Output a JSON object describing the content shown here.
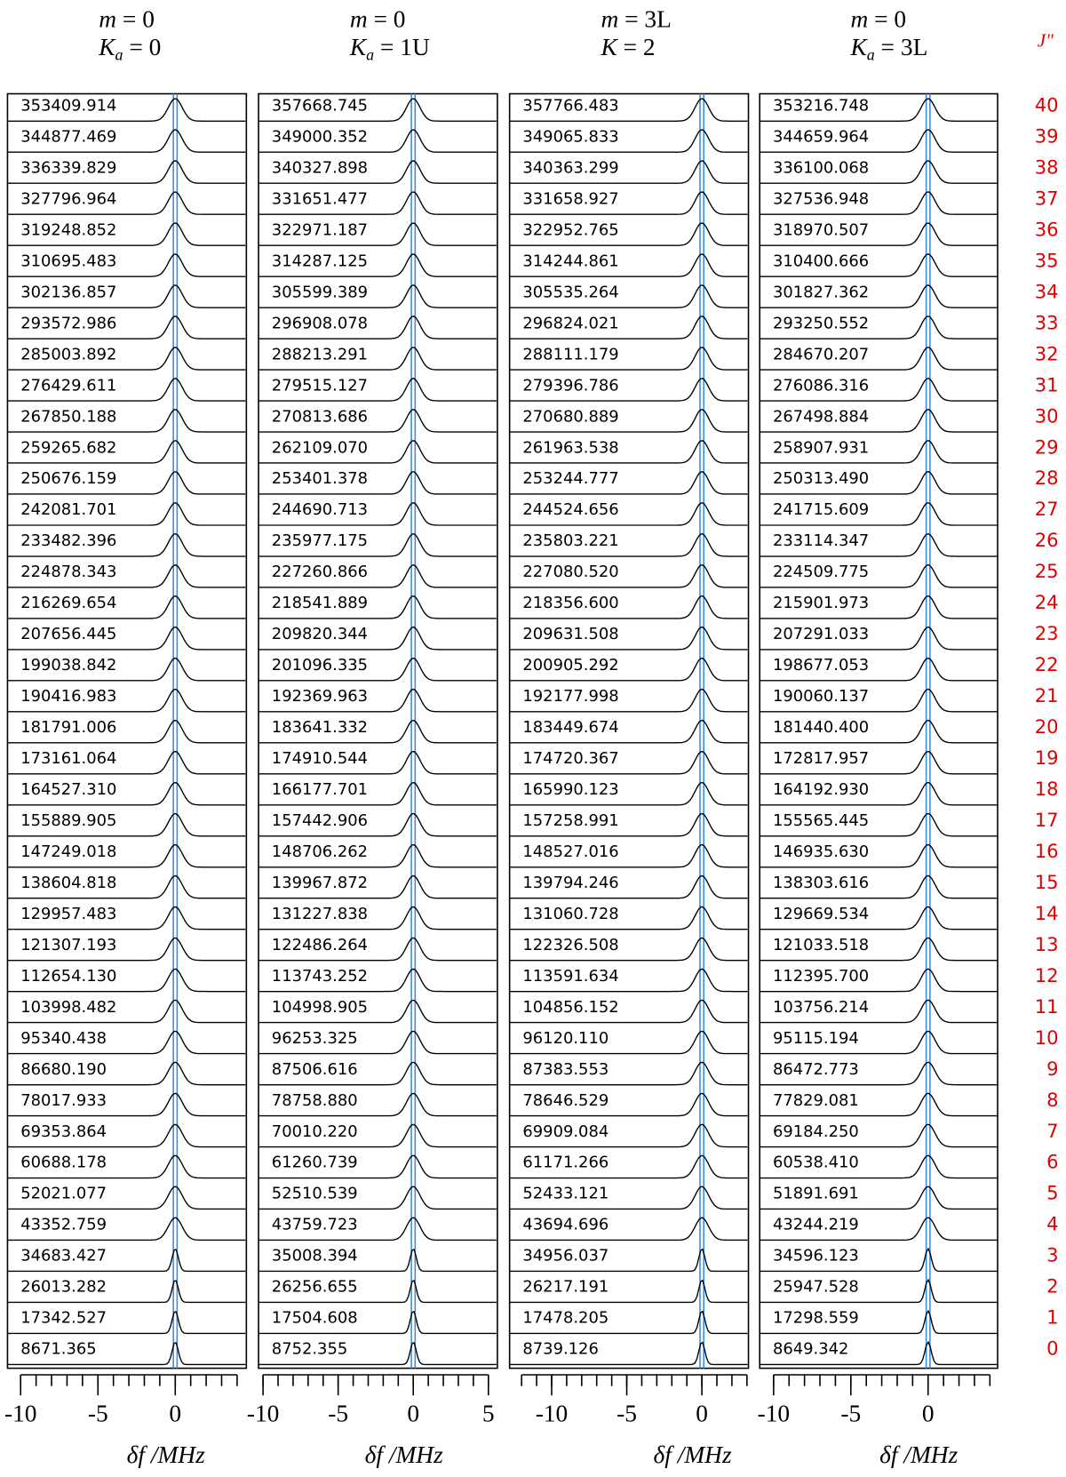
{
  "chart_data": [
    {
      "type": "spectra",
      "title": [
        {
          "italic": "m",
          "text": " = 0"
        },
        {
          "italic": "K",
          "sub": "a",
          "text": " = 0"
        }
      ],
      "rows": [
        "353409.914",
        "344877.469",
        "336339.829",
        "327796.964",
        "319248.852",
        "310695.483",
        "302136.857",
        "293572.986",
        "285003.892",
        "276429.611",
        "267850.188",
        "259265.682",
        "250676.159",
        "242081.701",
        "233482.396",
        "224878.343",
        "216269.654",
        "207656.445",
        "199038.842",
        "190416.983",
        "181791.006",
        "173161.064",
        "164527.310",
        "155889.905",
        "147249.018",
        "138604.818",
        "129957.483",
        "121307.193",
        "112654.130",
        "103998.482",
        "95340.438",
        "86680.190",
        "78017.933",
        "69353.864",
        "60688.178",
        "52021.077",
        "43352.759",
        "34683.427",
        "26013.282",
        "17342.527",
        "8671.365"
      ],
      "xlim": [
        -10.85,
        4.6
      ],
      "xticks": [
        -10,
        -5,
        0
      ],
      "xminorticks": [
        -10,
        -9,
        -8,
        -7,
        -6,
        -5,
        -4,
        -3,
        -2,
        -1,
        0,
        1,
        2,
        3,
        4
      ],
      "xlabel": "δf /MHz"
    },
    {
      "type": "spectra",
      "title": [
        {
          "italic": "m",
          "text": " = 0"
        },
        {
          "italic": "K",
          "sub": "a",
          "text": " = 1U"
        }
      ],
      "rows": [
        "357668.745",
        "349000.352",
        "340327.898",
        "331651.477",
        "322971.187",
        "314287.125",
        "305599.389",
        "296908.078",
        "288213.291",
        "279515.127",
        "270813.686",
        "262109.070",
        "253401.378",
        "244690.713",
        "235977.175",
        "227260.866",
        "218541.889",
        "209820.344",
        "201096.335",
        "192369.963",
        "183641.332",
        "174910.544",
        "166177.701",
        "157442.906",
        "148706.262",
        "139967.872",
        "131227.838",
        "122486.264",
        "113743.252",
        "104998.905",
        "96253.325",
        "87506.616",
        "78758.880",
        "70010.220",
        "61260.739",
        "52510.539",
        "43759.723",
        "35008.394",
        "26256.655",
        "17504.608",
        "8752.355"
      ],
      "xlim": [
        -10.3,
        5.6
      ],
      "xticks": [
        -10,
        -5,
        0,
        5
      ],
      "xminorticks": [
        -10,
        -9,
        -8,
        -7,
        -6,
        -5,
        -4,
        -3,
        -2,
        -1,
        0,
        1,
        2,
        3,
        4,
        5
      ],
      "xlabel": "δf /MHz"
    },
    {
      "type": "spectra",
      "title": [
        {
          "italic": "m",
          "text": " = 3L"
        },
        {
          "italic": "K",
          "text": " = 2"
        }
      ],
      "rows": [
        "357766.483",
        "349065.833",
        "340363.299",
        "331658.927",
        "322952.765",
        "314244.861",
        "305535.264",
        "296824.021",
        "288111.179",
        "279396.786",
        "270680.889",
        "261963.538",
        "253244.777",
        "244524.656",
        "235803.221",
        "227080.520",
        "218356.600",
        "209631.508",
        "200905.292",
        "192177.998",
        "183449.674",
        "174720.367",
        "165990.123",
        "157258.991",
        "148527.016",
        "139794.246",
        "131060.728",
        "122326.508",
        "113591.634",
        "104856.152",
        "96120.110",
        "87383.553",
        "78646.529",
        "69909.084",
        "61171.266",
        "52433.121",
        "43694.696",
        "34956.037",
        "26217.191",
        "17478.205",
        "8739.126"
      ],
      "xlim": [
        -12.8,
        3.1
      ],
      "xticks": [
        -10,
        -5,
        0
      ],
      "xminorticks": [
        -12,
        -11,
        -10,
        -9,
        -8,
        -7,
        -6,
        -5,
        -4,
        -3,
        -2,
        -1,
        0,
        1,
        2,
        3
      ],
      "xlabel": "δf /MHz"
    },
    {
      "type": "spectra",
      "title": [
        {
          "italic": "m",
          "text": " = 0"
        },
        {
          "italic": "K",
          "sub": "a",
          "text": " = 3L"
        }
      ],
      "rows": [
        "353216.748",
        "344659.964",
        "336100.068",
        "327536.948",
        "318970.507",
        "310400.666",
        "301827.362",
        "293250.552",
        "284670.207",
        "276086.316",
        "267498.884",
        "258907.931",
        "250313.490",
        "241715.609",
        "233114.347",
        "224509.775",
        "215901.973",
        "207291.033",
        "198677.053",
        "190060.137",
        "181440.400",
        "172817.957",
        "164192.930",
        "155565.445",
        "146935.630",
        "138303.616",
        "129669.534",
        "121033.518",
        "112395.700",
        "103756.214",
        "95115.194",
        "86472.773",
        "77829.081",
        "69184.250",
        "60538.410",
        "51891.691",
        "43244.219",
        "34596.123",
        "25947.528",
        "17298.559",
        "8649.342"
      ],
      "xlim": [
        -10.9,
        4.5
      ],
      "xticks": [
        -10,
        -5,
        0
      ],
      "xminorticks": [
        -10,
        -9,
        -8,
        -7,
        -6,
        -5,
        -4,
        -3,
        -2,
        -1,
        0,
        1,
        2,
        3,
        4
      ],
      "xlabel": "δf /MHz"
    }
  ],
  "j_axis": {
    "title": "J\"",
    "values": [
      40,
      39,
      38,
      37,
      36,
      35,
      34,
      33,
      32,
      31,
      30,
      29,
      28,
      27,
      26,
      25,
      24,
      23,
      22,
      21,
      20,
      19,
      18,
      17,
      16,
      15,
      14,
      13,
      12,
      11,
      10,
      9,
      8,
      7,
      6,
      5,
      4,
      3,
      2,
      1,
      0
    ]
  }
}
